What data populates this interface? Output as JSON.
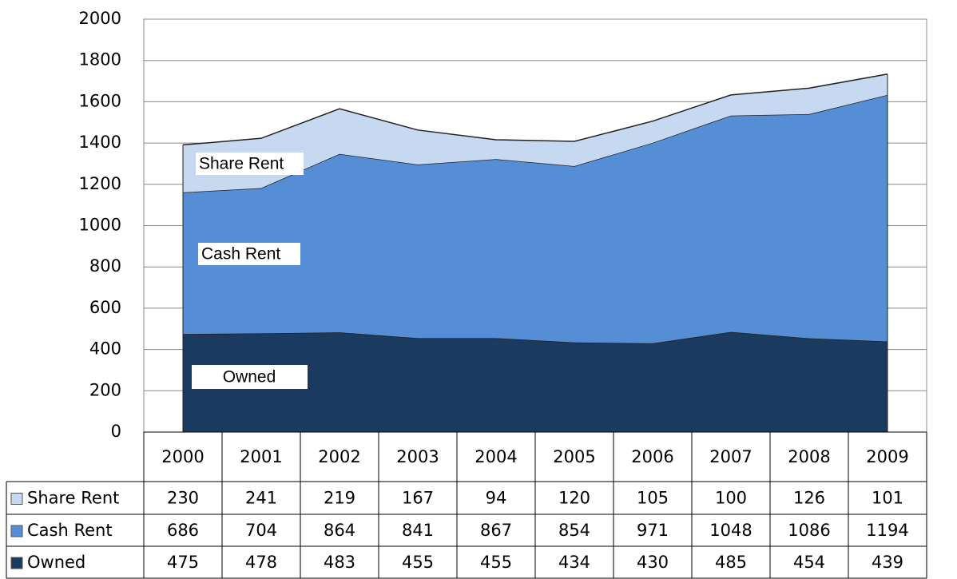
{
  "chart_data": {
    "type": "stacked_area",
    "categories": [
      "2000",
      "2001",
      "2002",
      "2003",
      "2004",
      "2005",
      "2006",
      "2007",
      "2008",
      "2009"
    ],
    "series": [
      {
        "name": "Share Rent",
        "color": "#c6d9f1",
        "values": [
          230,
          241,
          219,
          167,
          94,
          120,
          105,
          100,
          126,
          101
        ]
      },
      {
        "name": "Cash Rent",
        "color": "#558ed5",
        "values": [
          686,
          704,
          864,
          841,
          867,
          854,
          971,
          1048,
          1086,
          1194
        ]
      },
      {
        "name": "Owned",
        "color": "#1b3a5f",
        "values": [
          475,
          478,
          483,
          455,
          455,
          434,
          430,
          485,
          454,
          439
        ]
      }
    ],
    "ylim": [
      0,
      2000
    ],
    "yticks": [
      0,
      200,
      400,
      600,
      800,
      1000,
      1200,
      1400,
      1600,
      1800,
      2000
    ],
    "grid": true
  }
}
